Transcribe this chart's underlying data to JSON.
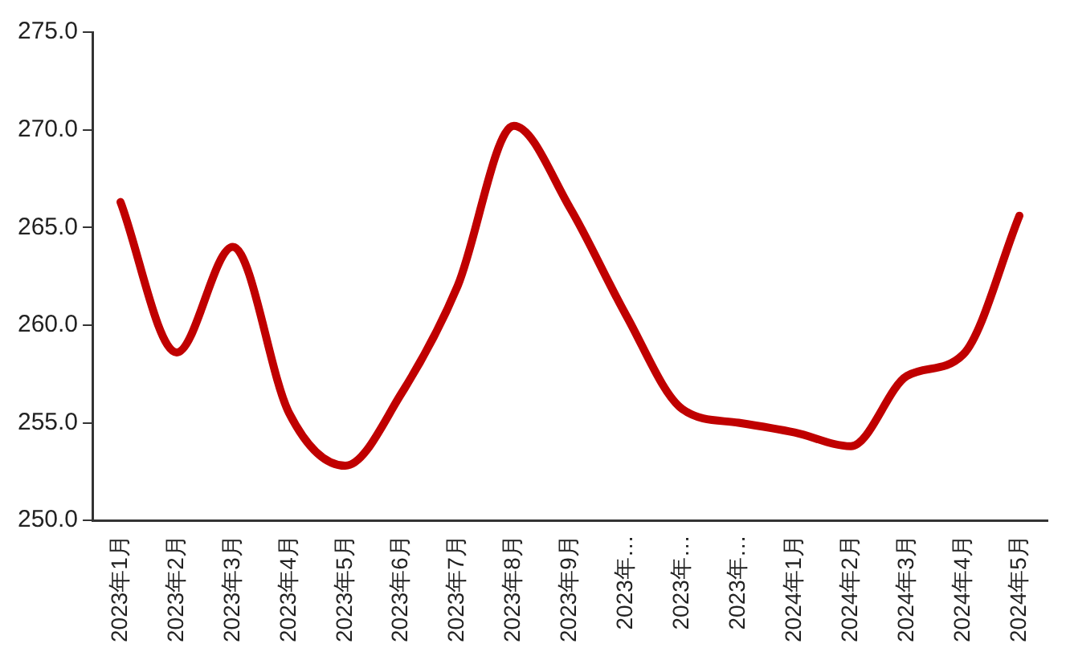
{
  "chart_data": {
    "type": "line",
    "categories": [
      "2023年1月",
      "2023年2月",
      "2023年3月",
      "2023年4月",
      "2023年5月",
      "2023年6月",
      "2023年7月",
      "2023年8月",
      "2023年9月",
      "2023年…",
      "2023年…",
      "2023年…",
      "2024年1月",
      "2024年2月",
      "2024年3月",
      "2024年4月",
      "2024年5月"
    ],
    "series": [
      {
        "color": "#c00000",
        "values": [
          266.3,
          258.6,
          264.0,
          255.5,
          252.8,
          256.5,
          262.0,
          270.2,
          266.0,
          260.5,
          255.7,
          255.0,
          254.5,
          253.8,
          257.4,
          258.5,
          265.6
        ]
      }
    ],
    "ylim": [
      250,
      275
    ],
    "yticks": [
      {
        "value": 250,
        "label": "250.0"
      },
      {
        "value": 255,
        "label": "255.0"
      },
      {
        "value": 260,
        "label": "260.0"
      },
      {
        "value": 265,
        "label": "265.0"
      },
      {
        "value": 270,
        "label": "270.0"
      },
      {
        "value": 275,
        "label": "275.0"
      }
    ],
    "grid": false,
    "legend": false,
    "marker": "none",
    "line_style": "solid"
  }
}
